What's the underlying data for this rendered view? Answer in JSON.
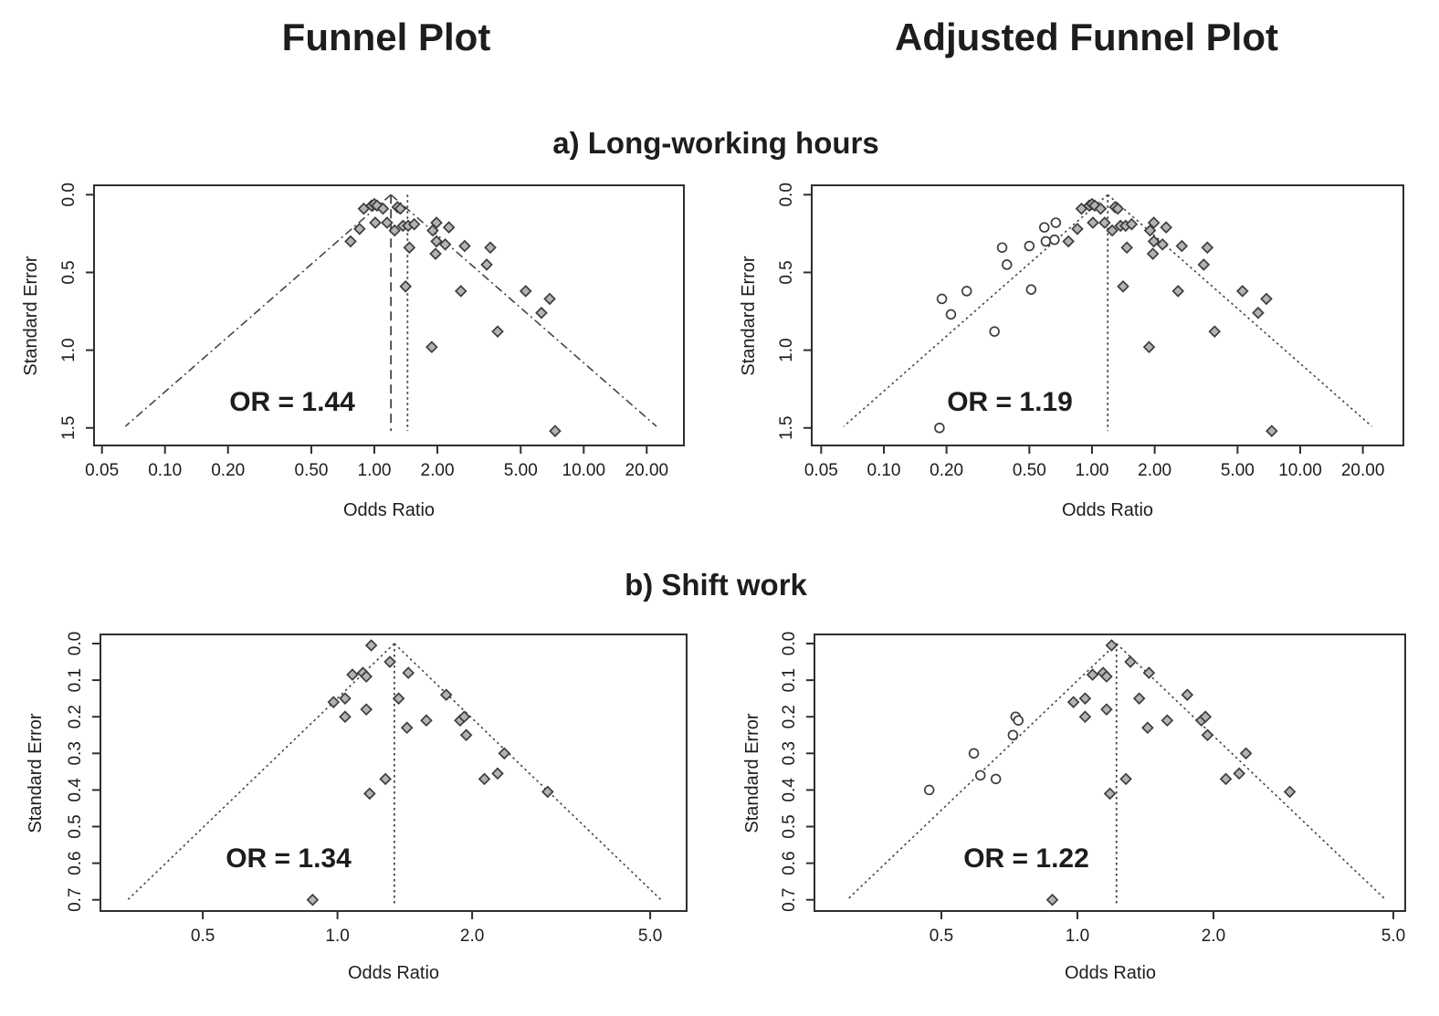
{
  "page": {
    "titles": {
      "funnel": "Funnel Plot",
      "adjusted": "Adjusted Funnel Plot"
    },
    "sections": {
      "a": "a) Long-working hours",
      "b": "b) Shift work"
    }
  },
  "colors": {
    "text": "#1d1d1d",
    "box": "#2f2f2f",
    "line": "#444444",
    "diamond_fill": "#b3b3b3",
    "diamond_stroke": "#3d3d3d",
    "circle_fill": "#ffffff",
    "circle_stroke": "#3d3d3d"
  },
  "chart_data": [
    {
      "id": "funnel-long-working-hours",
      "type": "scatter",
      "column": "Funnel Plot",
      "section": "a) Long-working hours",
      "xlabel": "Odds Ratio",
      "ylabel": "Standard Error",
      "or_label": "OR = 1.44",
      "x_scale": "log",
      "xlim": [
        0.046,
        30.0
      ],
      "selim": [
        -0.06,
        1.61
      ],
      "x_ticks": [
        {
          "v": 0.05,
          "label": "0.05"
        },
        {
          "v": 0.1,
          "label": "0.10"
        },
        {
          "v": 0.2,
          "label": "0.20"
        },
        {
          "v": 0.5,
          "label": "0.50"
        },
        {
          "v": 1.0,
          "label": "1.00"
        },
        {
          "v": 2.0,
          "label": "2.00"
        },
        {
          "v": 5.0,
          "label": "5.00"
        },
        {
          "v": 10.0,
          "label": "10.00"
        },
        {
          "v": 20.0,
          "label": "20.00"
        }
      ],
      "y_ticks": [
        {
          "v": 0.0,
          "label": "0.0"
        },
        {
          "v": 0.5,
          "label": "0.5"
        },
        {
          "v": 1.0,
          "label": "1.0"
        },
        {
          "v": 1.5,
          "label": "1.5"
        }
      ],
      "funnel": {
        "center": 1.2,
        "z": 1.96,
        "se_max": 1.49,
        "style": "dashdot"
      },
      "vlines": [
        {
          "x": 1.2,
          "style": "dashed",
          "se_max": 1.52
        },
        {
          "x": 1.44,
          "style": "dotted",
          "se_max": 1.52
        }
      ],
      "diamonds": [
        [
          0.89,
          0.09
        ],
        [
          0.97,
          0.07
        ],
        [
          1.0,
          0.06
        ],
        [
          1.03,
          0.07
        ],
        [
          1.1,
          0.09
        ],
        [
          1.29,
          0.08
        ],
        [
          1.33,
          0.09
        ],
        [
          0.85,
          0.22
        ],
        [
          1.01,
          0.18
        ],
        [
          1.15,
          0.18
        ],
        [
          1.25,
          0.23
        ],
        [
          1.37,
          0.2
        ],
        [
          1.45,
          0.2
        ],
        [
          1.55,
          0.19
        ],
        [
          0.77,
          0.3
        ],
        [
          1.47,
          0.34
        ],
        [
          1.98,
          0.18
        ],
        [
          2.27,
          0.21
        ],
        [
          1.9,
          0.23
        ],
        [
          1.98,
          0.3
        ],
        [
          2.18,
          0.32
        ],
        [
          2.7,
          0.33
        ],
        [
          3.58,
          0.34
        ],
        [
          1.96,
          0.38
        ],
        [
          3.44,
          0.45
        ],
        [
          1.41,
          0.59
        ],
        [
          2.59,
          0.62
        ],
        [
          5.28,
          0.62
        ],
        [
          6.88,
          0.67
        ],
        [
          6.28,
          0.76
        ],
        [
          3.88,
          0.88
        ],
        [
          1.88,
          0.98
        ],
        [
          7.3,
          1.52
        ]
      ],
      "circles": []
    },
    {
      "id": "adjusted-funnel-long-working-hours",
      "type": "scatter",
      "column": "Adjusted Funnel Plot",
      "section": "a) Long-working hours",
      "xlabel": "Odds Ratio",
      "ylabel": "Standard Error",
      "or_label": "OR = 1.19",
      "x_scale": "log",
      "xlim": [
        0.045,
        31.0
      ],
      "selim": [
        -0.06,
        1.61
      ],
      "x_ticks": [
        {
          "v": 0.05,
          "label": "0.05"
        },
        {
          "v": 0.1,
          "label": "0.10"
        },
        {
          "v": 0.2,
          "label": "0.20"
        },
        {
          "v": 0.5,
          "label": "0.50"
        },
        {
          "v": 1.0,
          "label": "1.00"
        },
        {
          "v": 2.0,
          "label": "2.00"
        },
        {
          "v": 5.0,
          "label": "5.00"
        },
        {
          "v": 10.0,
          "label": "10.00"
        },
        {
          "v": 20.0,
          "label": "20.00"
        }
      ],
      "y_ticks": [
        {
          "v": 0.0,
          "label": "0.0"
        },
        {
          "v": 0.5,
          "label": "0.5"
        },
        {
          "v": 1.0,
          "label": "1.0"
        },
        {
          "v": 1.5,
          "label": "1.5"
        }
      ],
      "funnel": {
        "center": 1.19,
        "z": 1.96,
        "se_max": 1.49,
        "style": "dotted"
      },
      "vlines": [
        {
          "x": 1.19,
          "style": "dotted",
          "se_max": 1.52
        }
      ],
      "diamonds": [
        [
          0.89,
          0.09
        ],
        [
          0.97,
          0.07
        ],
        [
          1.0,
          0.06
        ],
        [
          1.03,
          0.07
        ],
        [
          1.1,
          0.09
        ],
        [
          1.29,
          0.08
        ],
        [
          1.33,
          0.09
        ],
        [
          0.85,
          0.22
        ],
        [
          1.01,
          0.18
        ],
        [
          1.15,
          0.18
        ],
        [
          1.25,
          0.23
        ],
        [
          1.37,
          0.2
        ],
        [
          1.45,
          0.2
        ],
        [
          1.55,
          0.19
        ],
        [
          0.77,
          0.3
        ],
        [
          1.47,
          0.34
        ],
        [
          1.98,
          0.18
        ],
        [
          2.27,
          0.21
        ],
        [
          1.9,
          0.23
        ],
        [
          1.98,
          0.3
        ],
        [
          2.18,
          0.32
        ],
        [
          2.7,
          0.33
        ],
        [
          3.58,
          0.34
        ],
        [
          1.96,
          0.38
        ],
        [
          3.44,
          0.45
        ],
        [
          1.41,
          0.59
        ],
        [
          2.59,
          0.62
        ],
        [
          5.28,
          0.62
        ],
        [
          6.88,
          0.67
        ],
        [
          6.28,
          0.76
        ],
        [
          3.88,
          0.88
        ],
        [
          1.88,
          0.98
        ],
        [
          7.3,
          1.52
        ]
      ],
      "circles": [
        [
          0.19,
          0.67
        ],
        [
          0.21,
          0.77
        ],
        [
          0.25,
          0.62
        ],
        [
          0.34,
          0.88
        ],
        [
          0.37,
          0.34
        ],
        [
          0.39,
          0.45
        ],
        [
          0.5,
          0.33
        ],
        [
          0.51,
          0.61
        ],
        [
          0.59,
          0.21
        ],
        [
          0.6,
          0.3
        ],
        [
          0.66,
          0.29
        ],
        [
          0.67,
          0.18
        ],
        [
          0.185,
          1.5
        ]
      ]
    },
    {
      "id": "funnel-shift-work",
      "type": "scatter",
      "column": "Funnel Plot",
      "section": "b) Shift work",
      "xlabel": "Odds Ratio",
      "ylabel": "Standard Error",
      "or_label": "OR = 1.34",
      "x_scale": "log",
      "xlim": [
        0.295,
        6.05
      ],
      "selim": [
        -0.025,
        0.73
      ],
      "x_ticks": [
        {
          "v": 0.5,
          "label": "0.5"
        },
        {
          "v": 1.0,
          "label": "1.0"
        },
        {
          "v": 2.0,
          "label": "2.0"
        },
        {
          "v": 5.0,
          "label": "5.0"
        }
      ],
      "y_ticks": [
        {
          "v": 0.0,
          "label": "0.0"
        },
        {
          "v": 0.1,
          "label": "0.1"
        },
        {
          "v": 0.2,
          "label": "0.2"
        },
        {
          "v": 0.3,
          "label": "0.3"
        },
        {
          "v": 0.4,
          "label": "0.4"
        },
        {
          "v": 0.5,
          "label": "0.5"
        },
        {
          "v": 0.6,
          "label": "0.6"
        },
        {
          "v": 0.7,
          "label": "0.7"
        }
      ],
      "funnel": {
        "center": 1.34,
        "z": 1.96,
        "se_max": 0.7,
        "style": "dotted"
      },
      "vlines": [
        {
          "x": 1.34,
          "style": "dotted",
          "se_max": 0.715
        }
      ],
      "diamonds": [
        [
          1.19,
          0.005
        ],
        [
          1.31,
          0.05
        ],
        [
          1.08,
          0.085
        ],
        [
          1.14,
          0.08
        ],
        [
          1.16,
          0.09
        ],
        [
          1.44,
          0.08
        ],
        [
          0.98,
          0.16
        ],
        [
          1.04,
          0.15
        ],
        [
          1.04,
          0.2
        ],
        [
          1.16,
          0.18
        ],
        [
          1.37,
          0.15
        ],
        [
          1.43,
          0.23
        ],
        [
          1.58,
          0.21
        ],
        [
          1.75,
          0.14
        ],
        [
          1.88,
          0.21
        ],
        [
          1.92,
          0.2
        ],
        [
          1.94,
          0.25
        ],
        [
          2.36,
          0.3
        ],
        [
          1.28,
          0.37
        ],
        [
          1.18,
          0.41
        ],
        [
          2.13,
          0.37
        ],
        [
          2.28,
          0.355
        ],
        [
          2.95,
          0.405
        ],
        [
          0.88,
          0.7
        ]
      ],
      "circles": []
    },
    {
      "id": "adjusted-funnel-shift-work",
      "type": "scatter",
      "column": "Adjusted Funnel Plot",
      "section": "b) Shift work",
      "xlabel": "Odds Ratio",
      "ylabel": "Standard Error",
      "or_label": "OR = 1.22",
      "x_scale": "log",
      "xlim": [
        0.262,
        5.31
      ],
      "selim": [
        -0.025,
        0.73
      ],
      "x_ticks": [
        {
          "v": 0.5,
          "label": "0.5"
        },
        {
          "v": 1.0,
          "label": "1.0"
        },
        {
          "v": 2.0,
          "label": "2.0"
        },
        {
          "v": 5.0,
          "label": "5.0"
        }
      ],
      "y_ticks": [
        {
          "v": 0.0,
          "label": "0.0"
        },
        {
          "v": 0.1,
          "label": "0.1"
        },
        {
          "v": 0.2,
          "label": "0.2"
        },
        {
          "v": 0.3,
          "label": "0.3"
        },
        {
          "v": 0.4,
          "label": "0.4"
        },
        {
          "v": 0.5,
          "label": "0.5"
        },
        {
          "v": 0.6,
          "label": "0.6"
        },
        {
          "v": 0.7,
          "label": "0.7"
        }
      ],
      "funnel": {
        "center": 1.22,
        "z": 1.96,
        "se_max": 0.7,
        "style": "dotted"
      },
      "vlines": [
        {
          "x": 1.22,
          "style": "dotted",
          "se_max": 0.715
        }
      ],
      "diamonds": [
        [
          1.19,
          0.005
        ],
        [
          1.31,
          0.05
        ],
        [
          1.08,
          0.085
        ],
        [
          1.14,
          0.08
        ],
        [
          1.16,
          0.09
        ],
        [
          1.44,
          0.08
        ],
        [
          0.98,
          0.16
        ],
        [
          1.04,
          0.15
        ],
        [
          1.04,
          0.2
        ],
        [
          1.16,
          0.18
        ],
        [
          1.37,
          0.15
        ],
        [
          1.43,
          0.23
        ],
        [
          1.58,
          0.21
        ],
        [
          1.75,
          0.14
        ],
        [
          1.88,
          0.21
        ],
        [
          1.92,
          0.2
        ],
        [
          1.94,
          0.25
        ],
        [
          2.36,
          0.3
        ],
        [
          1.28,
          0.37
        ],
        [
          1.18,
          0.41
        ],
        [
          2.13,
          0.37
        ],
        [
          2.28,
          0.355
        ],
        [
          2.95,
          0.405
        ],
        [
          0.88,
          0.7
        ]
      ],
      "circles": [
        [
          0.47,
          0.4
        ],
        [
          0.59,
          0.3
        ],
        [
          0.61,
          0.36
        ],
        [
          0.66,
          0.37
        ],
        [
          0.72,
          0.25
        ],
        [
          0.73,
          0.2
        ],
        [
          0.74,
          0.21
        ]
      ]
    }
  ]
}
